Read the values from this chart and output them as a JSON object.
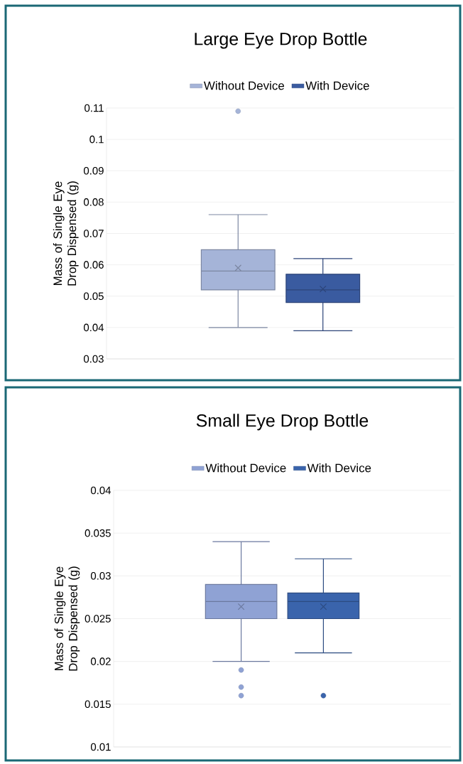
{
  "chart_data": [
    {
      "type": "box",
      "title": "Large Eye Drop Bottle",
      "ylabel": "Mass of Single Eye Drop Dispensed (g)",
      "categories": [
        null
      ],
      "ylim": [
        0.03,
        0.11
      ],
      "yticks": [
        0.03,
        0.04,
        0.05,
        0.06,
        0.07,
        0.08,
        0.09,
        0.1,
        0.11
      ],
      "grid": "y",
      "legend": "top",
      "tick_labels": "y",
      "series": [
        {
          "name": "Without Device",
          "color": "#a5b4d8",
          "boxes": [
            {
              "low": 0.04,
              "q1": 0.052,
              "median": 0.058,
              "q3": 0.0648,
              "high": 0.076,
              "mean": 0.059,
              "outliers": [
                0.109
              ]
            }
          ]
        },
        {
          "name": "With Device",
          "color": "#3a5ba0",
          "boxes": [
            {
              "low": 0.039,
              "q1": 0.048,
              "median": 0.052,
              "q3": 0.057,
              "high": 0.062,
              "mean": 0.0523
            }
          ]
        }
      ]
    },
    {
      "type": "box",
      "title": "Small Eye Drop Bottle",
      "ylabel": "Mass of Single Eye Drop Dispensed (g)",
      "categories": [
        null
      ],
      "ylim": [
        0.01,
        0.04
      ],
      "yticks": [
        0.01,
        0.015,
        0.02,
        0.025,
        0.03,
        0.035,
        0.04
      ],
      "grid": "y",
      "legend": "top",
      "tick_labels": "y",
      "series": [
        {
          "name": "Without Device",
          "color": "#8fa2d4",
          "boxes": [
            {
              "low": 0.02,
              "q1": 0.025,
              "median": 0.027,
              "q3": 0.029,
              "high": 0.034,
              "mean": 0.0264,
              "outliers": [
                0.019,
                0.017,
                0.016
              ]
            }
          ]
        },
        {
          "name": "With Device",
          "color": "#3a64ac",
          "boxes": [
            {
              "low": 0.021,
              "q1": 0.025,
              "median": 0.027,
              "q3": 0.028,
              "high": 0.032,
              "mean": 0.0264,
              "outliers": [
                0.016
              ]
            }
          ]
        }
      ]
    }
  ]
}
